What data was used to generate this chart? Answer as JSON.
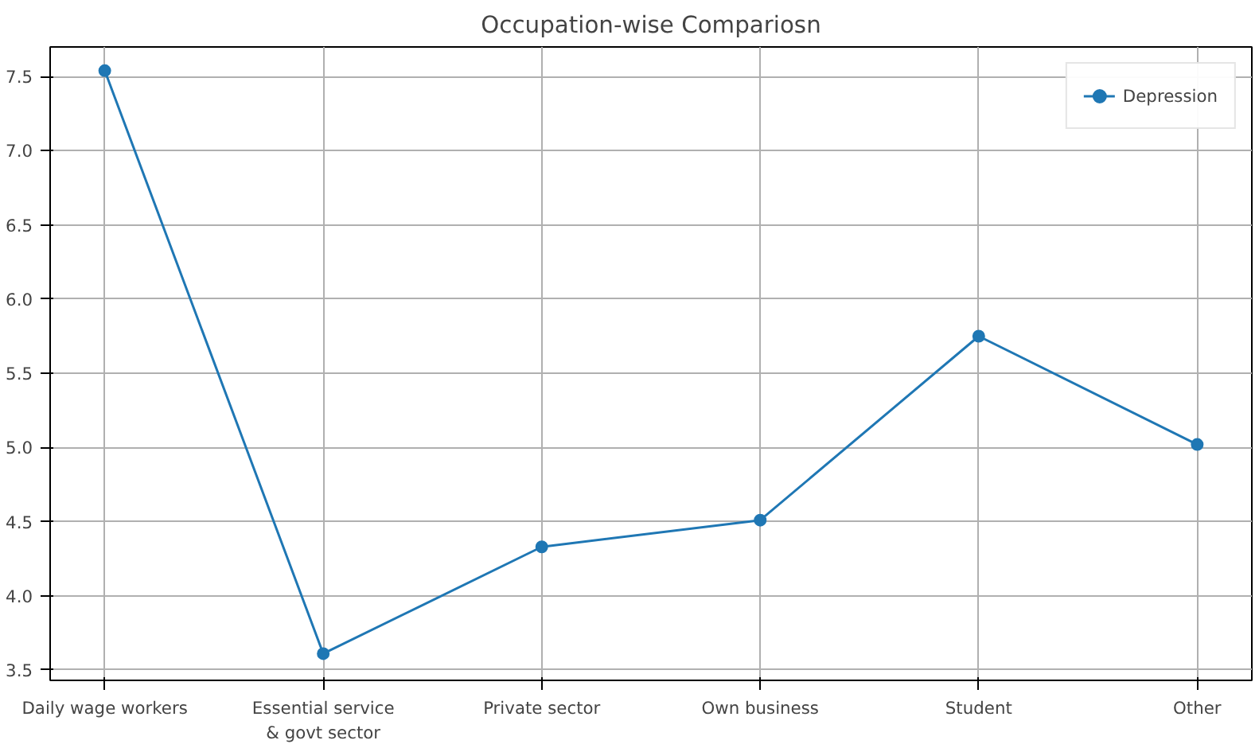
{
  "chart_data": {
    "type": "line",
    "title": "Occupation-wise Compariosn",
    "categories": [
      "Daily wage workers",
      "Essential service & govt sector",
      "Private sector",
      "Own business",
      "Student",
      "Other"
    ],
    "series": [
      {
        "name": "Depression",
        "color": "#1f77b4",
        "values": [
          7.54,
          3.61,
          4.33,
          4.51,
          5.75,
          5.02
        ]
      }
    ],
    "ylim": [
      3.43,
      7.7
    ],
    "yticks": [
      3.5,
      {
        "value": 4,
        "label": "4.0"
      },
      4.5,
      {
        "value": 5,
        "label": "5.0"
      },
      5.5,
      {
        "value": 6,
        "label": "6.0"
      },
      6.5,
      {
        "value": 7,
        "label": "7.0"
      },
      7.5
    ],
    "grid": true,
    "legend": "top right",
    "marker": "circle",
    "line_style": "solid"
  }
}
